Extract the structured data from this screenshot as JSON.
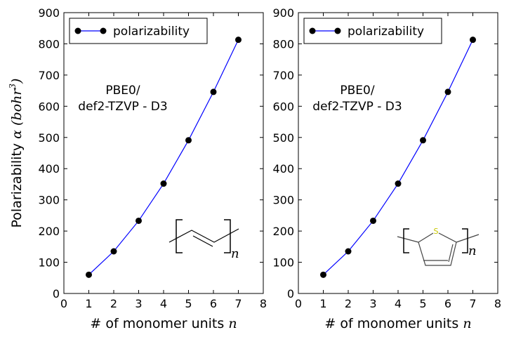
{
  "figure": {
    "ylabel_text": "Polarizability ",
    "ylabel_math": "α (bohr",
    "ylabel_exp": "3",
    "ylabel_close": ")"
  },
  "chart_data": [
    {
      "type": "line",
      "x": [
        1,
        2,
        3,
        4,
        5,
        6,
        7
      ],
      "series": [
        {
          "name": "polarizability",
          "values": [
            60,
            135,
            233,
            352,
            491,
            646,
            813
          ],
          "color": "#0000ff",
          "marker_color": "#000000",
          "marker": "circle"
        }
      ],
      "xlim": [
        0,
        8
      ],
      "ylim": [
        0,
        900
      ],
      "xticks": [
        0,
        1,
        2,
        3,
        4,
        5,
        6,
        7,
        8
      ],
      "yticks": [
        0,
        100,
        200,
        300,
        400,
        500,
        600,
        700,
        800,
        900
      ],
      "xlabel_text": "# of monomer units ",
      "xlabel_math": "n",
      "legend_position": "top-left",
      "grid": false,
      "annotation_lines": [
        "PBE0/",
        "def2-TZVP - D3"
      ],
      "structure": "polyacetylene",
      "structure_label": "n"
    },
    {
      "type": "line",
      "x": [
        1,
        2,
        3,
        4,
        5,
        6,
        7
      ],
      "series": [
        {
          "name": "polarizability",
          "values": [
            60,
            135,
            233,
            352,
            491,
            646,
            813
          ],
          "color": "#0000ff",
          "marker_color": "#000000",
          "marker": "circle"
        }
      ],
      "xlim": [
        0,
        8
      ],
      "ylim": [
        0,
        900
      ],
      "xticks": [
        0,
        1,
        2,
        3,
        4,
        5,
        6,
        7,
        8
      ],
      "yticks": [
        0,
        100,
        200,
        300,
        400,
        500,
        600,
        700,
        800,
        900
      ],
      "xlabel_text": "# of monomer units ",
      "xlabel_math": "n",
      "legend_position": "top-left",
      "grid": false,
      "annotation_lines": [
        "PBE0/",
        "def2-TZVP - D3"
      ],
      "structure": "polythiophene",
      "structure_label": "n",
      "structure_atom": "S"
    }
  ]
}
